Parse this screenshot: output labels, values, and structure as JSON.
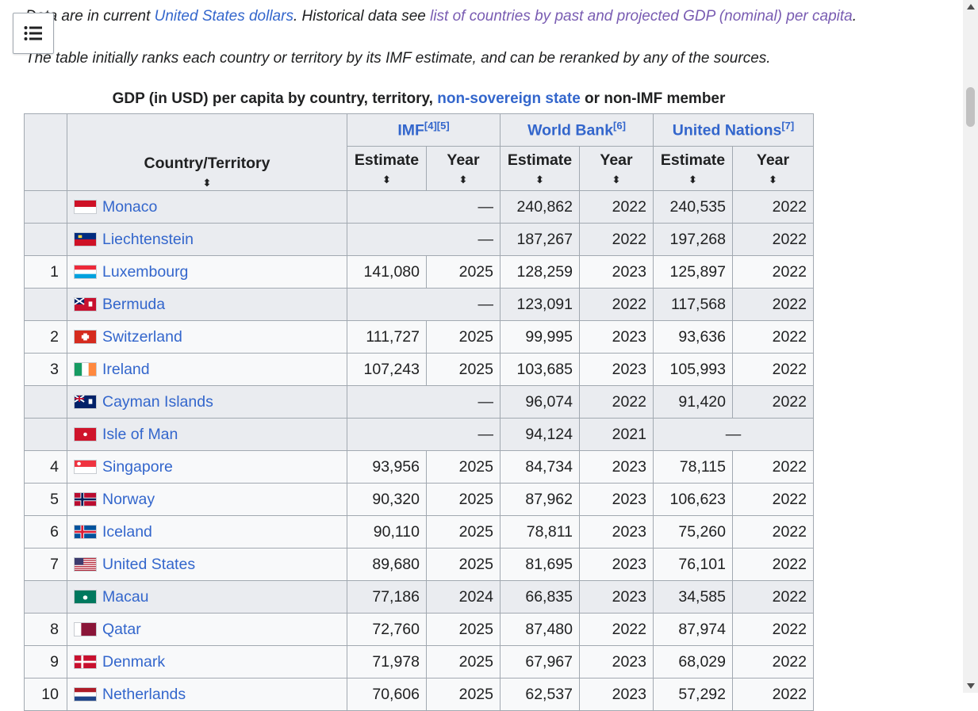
{
  "notes": {
    "line1_a": "Data are in current ",
    "line1_link1": "United States dollars",
    "line1_b": ". Historical data see ",
    "line1_link2": "list of countries by past and projected GDP (nominal) per capita",
    "line1_c": ".",
    "line2": "The table initially ranks each country or territory by its IMF estimate, and can be reranked by any of the sources."
  },
  "caption": {
    "pre": "GDP (in USD) per capita by country, territory, ",
    "link": "non-sovereign state",
    "post": " or non-IMF member"
  },
  "headers": {
    "country": "Country/Territory",
    "imf": "IMF",
    "imf_refs": "[4][5]",
    "wb": "World Bank",
    "wb_refs": "[6]",
    "un": "United Nations",
    "un_refs": "[7]",
    "estimate": "Estimate",
    "year": "Year",
    "sort_glyph": "⬍"
  },
  "dash": "—",
  "rows": [
    {
      "rank": "",
      "country": "Monaco",
      "flag": "monaco",
      "imf": "—",
      "imf_year": "",
      "wb": "240,862",
      "wb_year": "2022",
      "un": "240,535",
      "un_year": "2022"
    },
    {
      "rank": "",
      "country": "Liechtenstein",
      "flag": "liechtenstein",
      "imf": "—",
      "imf_year": "",
      "wb": "187,267",
      "wb_year": "2022",
      "un": "197,268",
      "un_year": "2022"
    },
    {
      "rank": "1",
      "country": "Luxembourg",
      "flag": "luxembourg",
      "imf": "141,080",
      "imf_year": "2025",
      "wb": "128,259",
      "wb_year": "2023",
      "un": "125,897",
      "un_year": "2022"
    },
    {
      "rank": "",
      "country": "Bermuda",
      "flag": "bermuda",
      "imf": "—",
      "imf_year": "",
      "wb": "123,091",
      "wb_year": "2022",
      "un": "117,568",
      "un_year": "2022"
    },
    {
      "rank": "2",
      "country": "Switzerland",
      "flag": "switzerland",
      "imf": "111,727",
      "imf_year": "2025",
      "wb": "99,995",
      "wb_year": "2023",
      "un": "93,636",
      "un_year": "2022"
    },
    {
      "rank": "3",
      "country": "Ireland",
      "flag": "ireland",
      "imf": "107,243",
      "imf_year": "2025",
      "wb": "103,685",
      "wb_year": "2023",
      "un": "105,993",
      "un_year": "2022"
    },
    {
      "rank": "",
      "country": "Cayman Islands",
      "flag": "cayman",
      "imf": "—",
      "imf_year": "",
      "wb": "96,074",
      "wb_year": "2022",
      "un": "91,420",
      "un_year": "2022"
    },
    {
      "rank": "",
      "country": "Isle of Man",
      "flag": "isleofman",
      "imf": "—",
      "imf_year": "",
      "wb": "94,124",
      "wb_year": "2021",
      "un": "—",
      "un_year": ""
    },
    {
      "rank": "4",
      "country": "Singapore",
      "flag": "singapore",
      "imf": "93,956",
      "imf_year": "2025",
      "wb": "84,734",
      "wb_year": "2023",
      "un": "78,115",
      "un_year": "2022"
    },
    {
      "rank": "5",
      "country": "Norway",
      "flag": "norway",
      "imf": "90,320",
      "imf_year": "2025",
      "wb": "87,962",
      "wb_year": "2023",
      "un": "106,623",
      "un_year": "2022"
    },
    {
      "rank": "6",
      "country": "Iceland",
      "flag": "iceland",
      "imf": "90,110",
      "imf_year": "2025",
      "wb": "78,811",
      "wb_year": "2023",
      "un": "75,260",
      "un_year": "2022"
    },
    {
      "rank": "7",
      "country": "United States",
      "flag": "usa",
      "imf": "89,680",
      "imf_year": "2025",
      "wb": "81,695",
      "wb_year": "2023",
      "un": "76,101",
      "un_year": "2022"
    },
    {
      "rank": "",
      "country": "Macau",
      "flag": "macau",
      "imf": "77,186",
      "imf_year": "2024",
      "wb": "66,835",
      "wb_year": "2023",
      "un": "34,585",
      "un_year": "2022"
    },
    {
      "rank": "8",
      "country": "Qatar",
      "flag": "qatar",
      "imf": "72,760",
      "imf_year": "2025",
      "wb": "87,480",
      "wb_year": "2022",
      "un": "87,974",
      "un_year": "2022"
    },
    {
      "rank": "9",
      "country": "Denmark",
      "flag": "denmark",
      "imf": "71,978",
      "imf_year": "2025",
      "wb": "67,967",
      "wb_year": "2023",
      "un": "68,029",
      "un_year": "2022"
    },
    {
      "rank": "10",
      "country": "Netherlands",
      "flag": "netherlands",
      "imf": "70,606",
      "imf_year": "2025",
      "wb": "62,537",
      "wb_year": "2023",
      "un": "57,292",
      "un_year": "2022"
    }
  ]
}
